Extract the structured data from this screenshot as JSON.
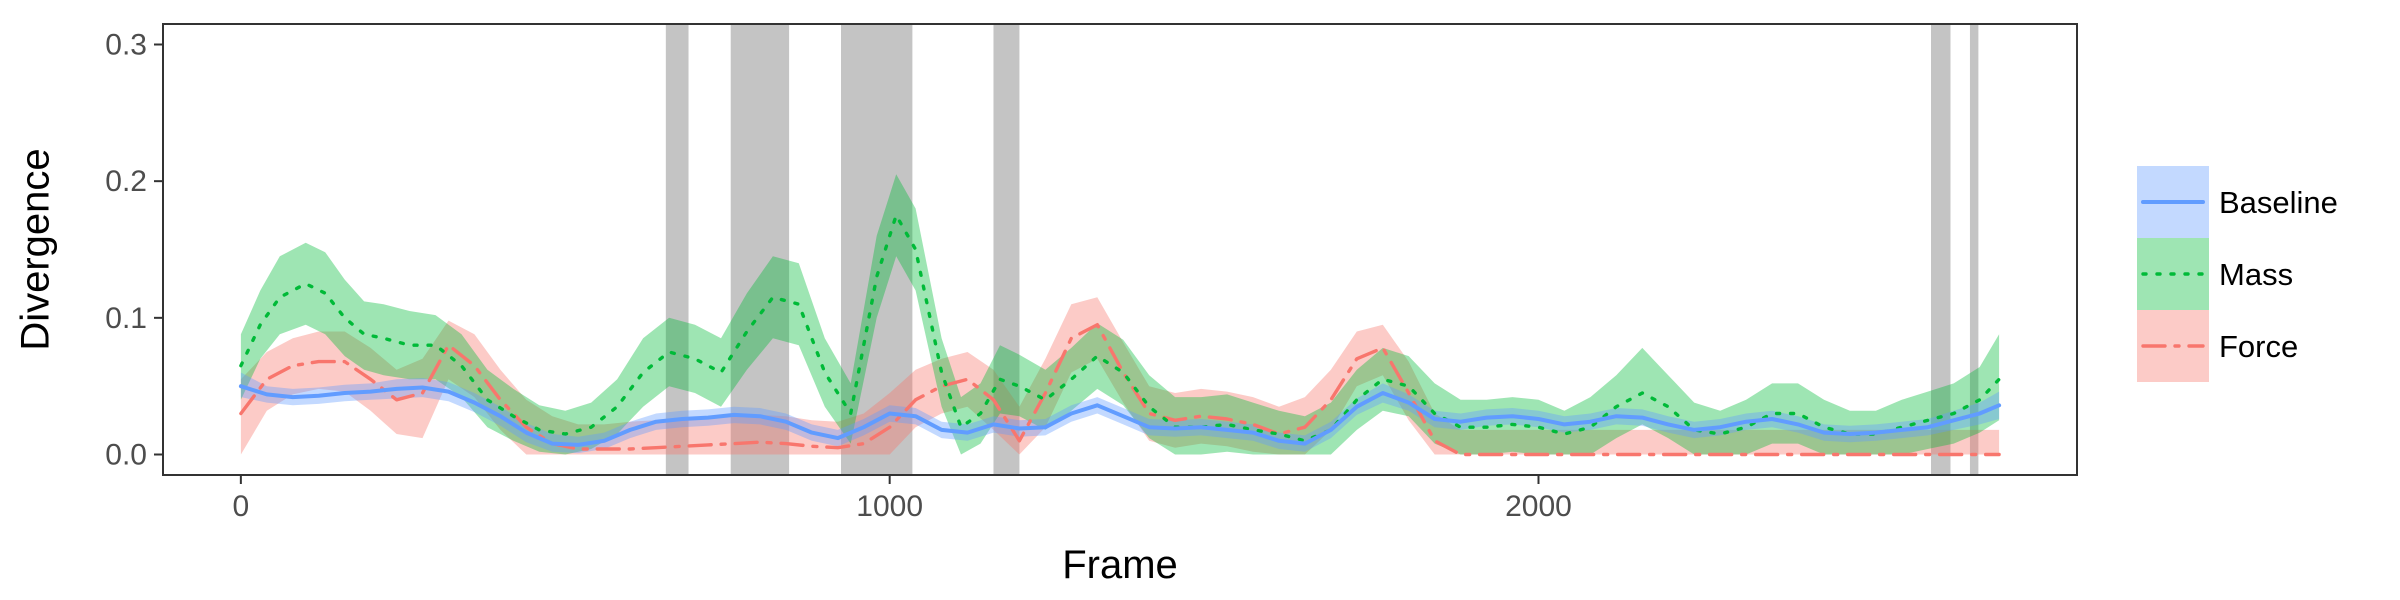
{
  "chart_data": {
    "type": "line",
    "title": "",
    "xlabel": "Frame",
    "ylabel": "Divergence",
    "xlim": [
      -120,
      2830
    ],
    "ylim": [
      -0.015,
      0.315
    ],
    "x_ticks": [
      0,
      1000,
      2000
    ],
    "x_tick_labels": [
      "0",
      "1000",
      "2000"
    ],
    "y_ticks": [
      0,
      0.1,
      0.2,
      0.3
    ],
    "y_tick_labels": [
      "0.0",
      "0.1",
      "0.2",
      "0.3"
    ],
    "grid": false,
    "legend_position": "right",
    "shaded_regions": [
      [
        655,
        690
      ],
      [
        755,
        845
      ],
      [
        925,
        1035
      ],
      [
        1160,
        1200
      ],
      [
        2605,
        2635
      ],
      [
        2665,
        2678
      ]
    ],
    "shaded_region_color": "#c4c4c4",
    "series": [
      {
        "name": "Baseline",
        "color": "#619CFF",
        "band_color": "#619CFF",
        "dash": "",
        "x": [
          0,
          40,
          80,
          120,
          160,
          200,
          240,
          280,
          320,
          360,
          400,
          440,
          480,
          520,
          560,
          600,
          640,
          680,
          720,
          760,
          800,
          840,
          880,
          920,
          960,
          1000,
          1040,
          1080,
          1120,
          1160,
          1200,
          1240,
          1280,
          1320,
          1360,
          1400,
          1440,
          1480,
          1520,
          1560,
          1600,
          1640,
          1680,
          1720,
          1760,
          1800,
          1840,
          1880,
          1920,
          1960,
          2000,
          2040,
          2080,
          2120,
          2160,
          2200,
          2240,
          2280,
          2320,
          2360,
          2400,
          2440,
          2480,
          2520,
          2560,
          2600,
          2640,
          2680,
          2710
        ],
        "y": [
          0.05,
          0.044,
          0.042,
          0.043,
          0.045,
          0.046,
          0.048,
          0.049,
          0.046,
          0.038,
          0.028,
          0.016,
          0.008,
          0.007,
          0.01,
          0.018,
          0.024,
          0.026,
          0.027,
          0.029,
          0.028,
          0.024,
          0.016,
          0.012,
          0.02,
          0.03,
          0.028,
          0.018,
          0.016,
          0.022,
          0.019,
          0.02,
          0.03,
          0.036,
          0.028,
          0.02,
          0.019,
          0.02,
          0.018,
          0.016,
          0.01,
          0.008,
          0.018,
          0.035,
          0.045,
          0.038,
          0.026,
          0.024,
          0.027,
          0.028,
          0.026,
          0.022,
          0.024,
          0.028,
          0.027,
          0.022,
          0.018,
          0.02,
          0.024,
          0.026,
          0.022,
          0.016,
          0.015,
          0.016,
          0.018,
          0.02,
          0.025,
          0.03,
          0.036
        ],
        "lower": [
          0.042,
          0.038,
          0.036,
          0.037,
          0.039,
          0.04,
          0.041,
          0.042,
          0.039,
          0.031,
          0.021,
          0.009,
          0.002,
          0.001,
          0.004,
          0.012,
          0.018,
          0.02,
          0.021,
          0.023,
          0.022,
          0.018,
          0.01,
          0.006,
          0.014,
          0.024,
          0.022,
          0.012,
          0.01,
          0.016,
          0.013,
          0.014,
          0.024,
          0.03,
          0.022,
          0.014,
          0.013,
          0.014,
          0.012,
          0.01,
          0.004,
          0.002,
          0.012,
          0.029,
          0.038,
          0.032,
          0.02,
          0.018,
          0.021,
          0.022,
          0.02,
          0.016,
          0.018,
          0.022,
          0.021,
          0.016,
          0.012,
          0.014,
          0.018,
          0.02,
          0.016,
          0.01,
          0.009,
          0.01,
          0.012,
          0.014,
          0.018,
          0.022,
          0.026
        ],
        "upper": [
          0.06,
          0.05,
          0.048,
          0.049,
          0.051,
          0.052,
          0.055,
          0.056,
          0.053,
          0.045,
          0.035,
          0.023,
          0.015,
          0.013,
          0.016,
          0.024,
          0.03,
          0.032,
          0.033,
          0.035,
          0.034,
          0.03,
          0.022,
          0.018,
          0.026,
          0.036,
          0.034,
          0.024,
          0.022,
          0.028,
          0.025,
          0.026,
          0.036,
          0.042,
          0.034,
          0.026,
          0.025,
          0.026,
          0.024,
          0.022,
          0.016,
          0.014,
          0.024,
          0.041,
          0.052,
          0.044,
          0.032,
          0.03,
          0.033,
          0.034,
          0.032,
          0.028,
          0.03,
          0.034,
          0.033,
          0.028,
          0.024,
          0.026,
          0.03,
          0.032,
          0.028,
          0.022,
          0.021,
          0.022,
          0.024,
          0.026,
          0.032,
          0.038,
          0.046
        ]
      },
      {
        "name": "Mass",
        "color": "#00BA38",
        "band_color": "#00BA38",
        "dash": "3,11",
        "x": [
          0,
          30,
          60,
          100,
          130,
          160,
          190,
          220,
          260,
          300,
          340,
          380,
          420,
          460,
          500,
          540,
          580,
          620,
          660,
          700,
          740,
          780,
          820,
          860,
          900,
          940,
          980,
          1010,
          1040,
          1080,
          1110,
          1140,
          1170,
          1200,
          1240,
          1280,
          1320,
          1360,
          1400,
          1440,
          1480,
          1520,
          1560,
          1600,
          1640,
          1680,
          1720,
          1760,
          1800,
          1840,
          1880,
          1920,
          1960,
          2000,
          2040,
          2080,
          2120,
          2160,
          2200,
          2240,
          2280,
          2320,
          2360,
          2400,
          2440,
          2480,
          2520,
          2560,
          2600,
          2640,
          2680,
          2710
        ],
        "y": [
          0.065,
          0.095,
          0.115,
          0.125,
          0.118,
          0.1,
          0.088,
          0.085,
          0.08,
          0.08,
          0.065,
          0.04,
          0.028,
          0.018,
          0.015,
          0.02,
          0.035,
          0.06,
          0.075,
          0.07,
          0.06,
          0.09,
          0.115,
          0.11,
          0.06,
          0.03,
          0.13,
          0.175,
          0.15,
          0.06,
          0.02,
          0.03,
          0.055,
          0.05,
          0.04,
          0.055,
          0.072,
          0.06,
          0.035,
          0.02,
          0.02,
          0.022,
          0.018,
          0.015,
          0.01,
          0.018,
          0.04,
          0.055,
          0.05,
          0.03,
          0.02,
          0.02,
          0.022,
          0.02,
          0.015,
          0.02,
          0.035,
          0.045,
          0.035,
          0.018,
          0.015,
          0.02,
          0.03,
          0.03,
          0.02,
          0.015,
          0.015,
          0.02,
          0.025,
          0.03,
          0.04,
          0.055
        ],
        "lower": [
          0.04,
          0.07,
          0.088,
          0.095,
          0.088,
          0.072,
          0.062,
          0.058,
          0.055,
          0.055,
          0.042,
          0.02,
          0.01,
          0.002,
          0.0,
          0.004,
          0.015,
          0.035,
          0.05,
          0.045,
          0.035,
          0.062,
          0.085,
          0.08,
          0.035,
          0.008,
          0.1,
          0.145,
          0.12,
          0.035,
          0.0,
          0.008,
          0.03,
          0.028,
          0.018,
          0.032,
          0.048,
          0.036,
          0.012,
          0.0,
          0.0,
          0.002,
          0.0,
          0.0,
          0.0,
          0.0,
          0.018,
          0.032,
          0.028,
          0.008,
          0.0,
          0.0,
          0.002,
          0.0,
          0.0,
          0.0,
          0.012,
          0.022,
          0.012,
          0.0,
          0.0,
          0.0,
          0.008,
          0.008,
          0.0,
          0.0,
          0.0,
          0.0,
          0.004,
          0.008,
          0.016,
          0.025
        ],
        "upper": [
          0.088,
          0.12,
          0.145,
          0.155,
          0.148,
          0.128,
          0.112,
          0.11,
          0.105,
          0.102,
          0.088,
          0.062,
          0.048,
          0.036,
          0.032,
          0.038,
          0.055,
          0.085,
          0.1,
          0.095,
          0.085,
          0.118,
          0.145,
          0.14,
          0.085,
          0.052,
          0.16,
          0.205,
          0.18,
          0.085,
          0.042,
          0.052,
          0.08,
          0.073,
          0.062,
          0.078,
          0.096,
          0.084,
          0.058,
          0.042,
          0.042,
          0.044,
          0.038,
          0.032,
          0.028,
          0.038,
          0.062,
          0.078,
          0.072,
          0.052,
          0.04,
          0.04,
          0.042,
          0.04,
          0.032,
          0.042,
          0.058,
          0.078,
          0.058,
          0.038,
          0.032,
          0.04,
          0.052,
          0.052,
          0.04,
          0.032,
          0.032,
          0.04,
          0.046,
          0.052,
          0.064,
          0.088
        ]
      },
      {
        "name": "Force",
        "color": "#F8766D",
        "band_color": "#F8766D",
        "dash": "22,10,4,10",
        "x": [
          0,
          40,
          80,
          120,
          160,
          200,
          240,
          280,
          320,
          360,
          400,
          440,
          480,
          520,
          560,
          600,
          640,
          680,
          720,
          760,
          800,
          840,
          880,
          920,
          960,
          1000,
          1040,
          1080,
          1120,
          1160,
          1200,
          1240,
          1280,
          1320,
          1360,
          1400,
          1440,
          1480,
          1520,
          1560,
          1600,
          1640,
          1680,
          1720,
          1760,
          1800,
          1840,
          1880,
          1920,
          1960,
          2000,
          2040,
          2080,
          2120,
          2160,
          2200,
          2240,
          2280,
          2320,
          2360,
          2400,
          2440,
          2480,
          2520,
          2560,
          2600,
          2640,
          2680,
          2710
        ],
        "y": [
          0.03,
          0.055,
          0.065,
          0.068,
          0.068,
          0.055,
          0.04,
          0.045,
          0.08,
          0.065,
          0.04,
          0.02,
          0.008,
          0.004,
          0.004,
          0.004,
          0.005,
          0.006,
          0.007,
          0.008,
          0.009,
          0.008,
          0.006,
          0.005,
          0.008,
          0.02,
          0.04,
          0.05,
          0.055,
          0.04,
          0.01,
          0.045,
          0.085,
          0.095,
          0.06,
          0.03,
          0.025,
          0.028,
          0.026,
          0.022,
          0.015,
          0.02,
          0.04,
          0.07,
          0.078,
          0.045,
          0.01,
          0.0,
          0.0,
          0.0,
          0.0,
          0.0,
          0.0,
          0.0,
          0.0,
          0.0,
          0.0,
          0.0,
          0.0,
          0.0,
          0.0,
          0.0,
          0.0,
          0.0,
          0.0,
          0.0,
          0.0,
          0.0,
          0.0
        ],
        "lower": [
          0.0,
          0.032,
          0.044,
          0.048,
          0.046,
          0.032,
          0.015,
          0.012,
          0.055,
          0.042,
          0.018,
          0.0,
          0.0,
          0.0,
          0.0,
          0.0,
          0.0,
          0.0,
          0.0,
          0.0,
          0.0,
          0.0,
          0.0,
          0.0,
          0.0,
          0.0,
          0.02,
          0.03,
          0.035,
          0.018,
          0.0,
          0.02,
          0.06,
          0.07,
          0.038,
          0.01,
          0.005,
          0.008,
          0.006,
          0.002,
          0.0,
          0.0,
          0.018,
          0.05,
          0.058,
          0.025,
          0.0,
          0.0,
          0.0,
          0.0,
          0.0,
          0.0,
          0.0,
          0.0,
          0.0,
          0.0,
          0.0,
          0.0,
          0.0,
          0.0,
          0.0,
          0.0,
          0.0,
          0.0,
          0.0,
          0.0,
          0.0,
          0.0,
          0.0
        ],
        "upper": [
          0.055,
          0.075,
          0.085,
          0.09,
          0.09,
          0.078,
          0.062,
          0.07,
          0.098,
          0.088,
          0.062,
          0.04,
          0.028,
          0.022,
          0.022,
          0.024,
          0.025,
          0.026,
          0.027,
          0.028,
          0.029,
          0.028,
          0.025,
          0.024,
          0.03,
          0.045,
          0.062,
          0.07,
          0.075,
          0.062,
          0.035,
          0.07,
          0.11,
          0.115,
          0.082,
          0.05,
          0.045,
          0.048,
          0.046,
          0.042,
          0.035,
          0.042,
          0.062,
          0.09,
          0.095,
          0.068,
          0.03,
          0.018,
          0.018,
          0.018,
          0.018,
          0.018,
          0.018,
          0.018,
          0.018,
          0.018,
          0.018,
          0.018,
          0.018,
          0.018,
          0.018,
          0.018,
          0.018,
          0.018,
          0.018,
          0.018,
          0.018,
          0.018,
          0.018
        ]
      }
    ]
  }
}
